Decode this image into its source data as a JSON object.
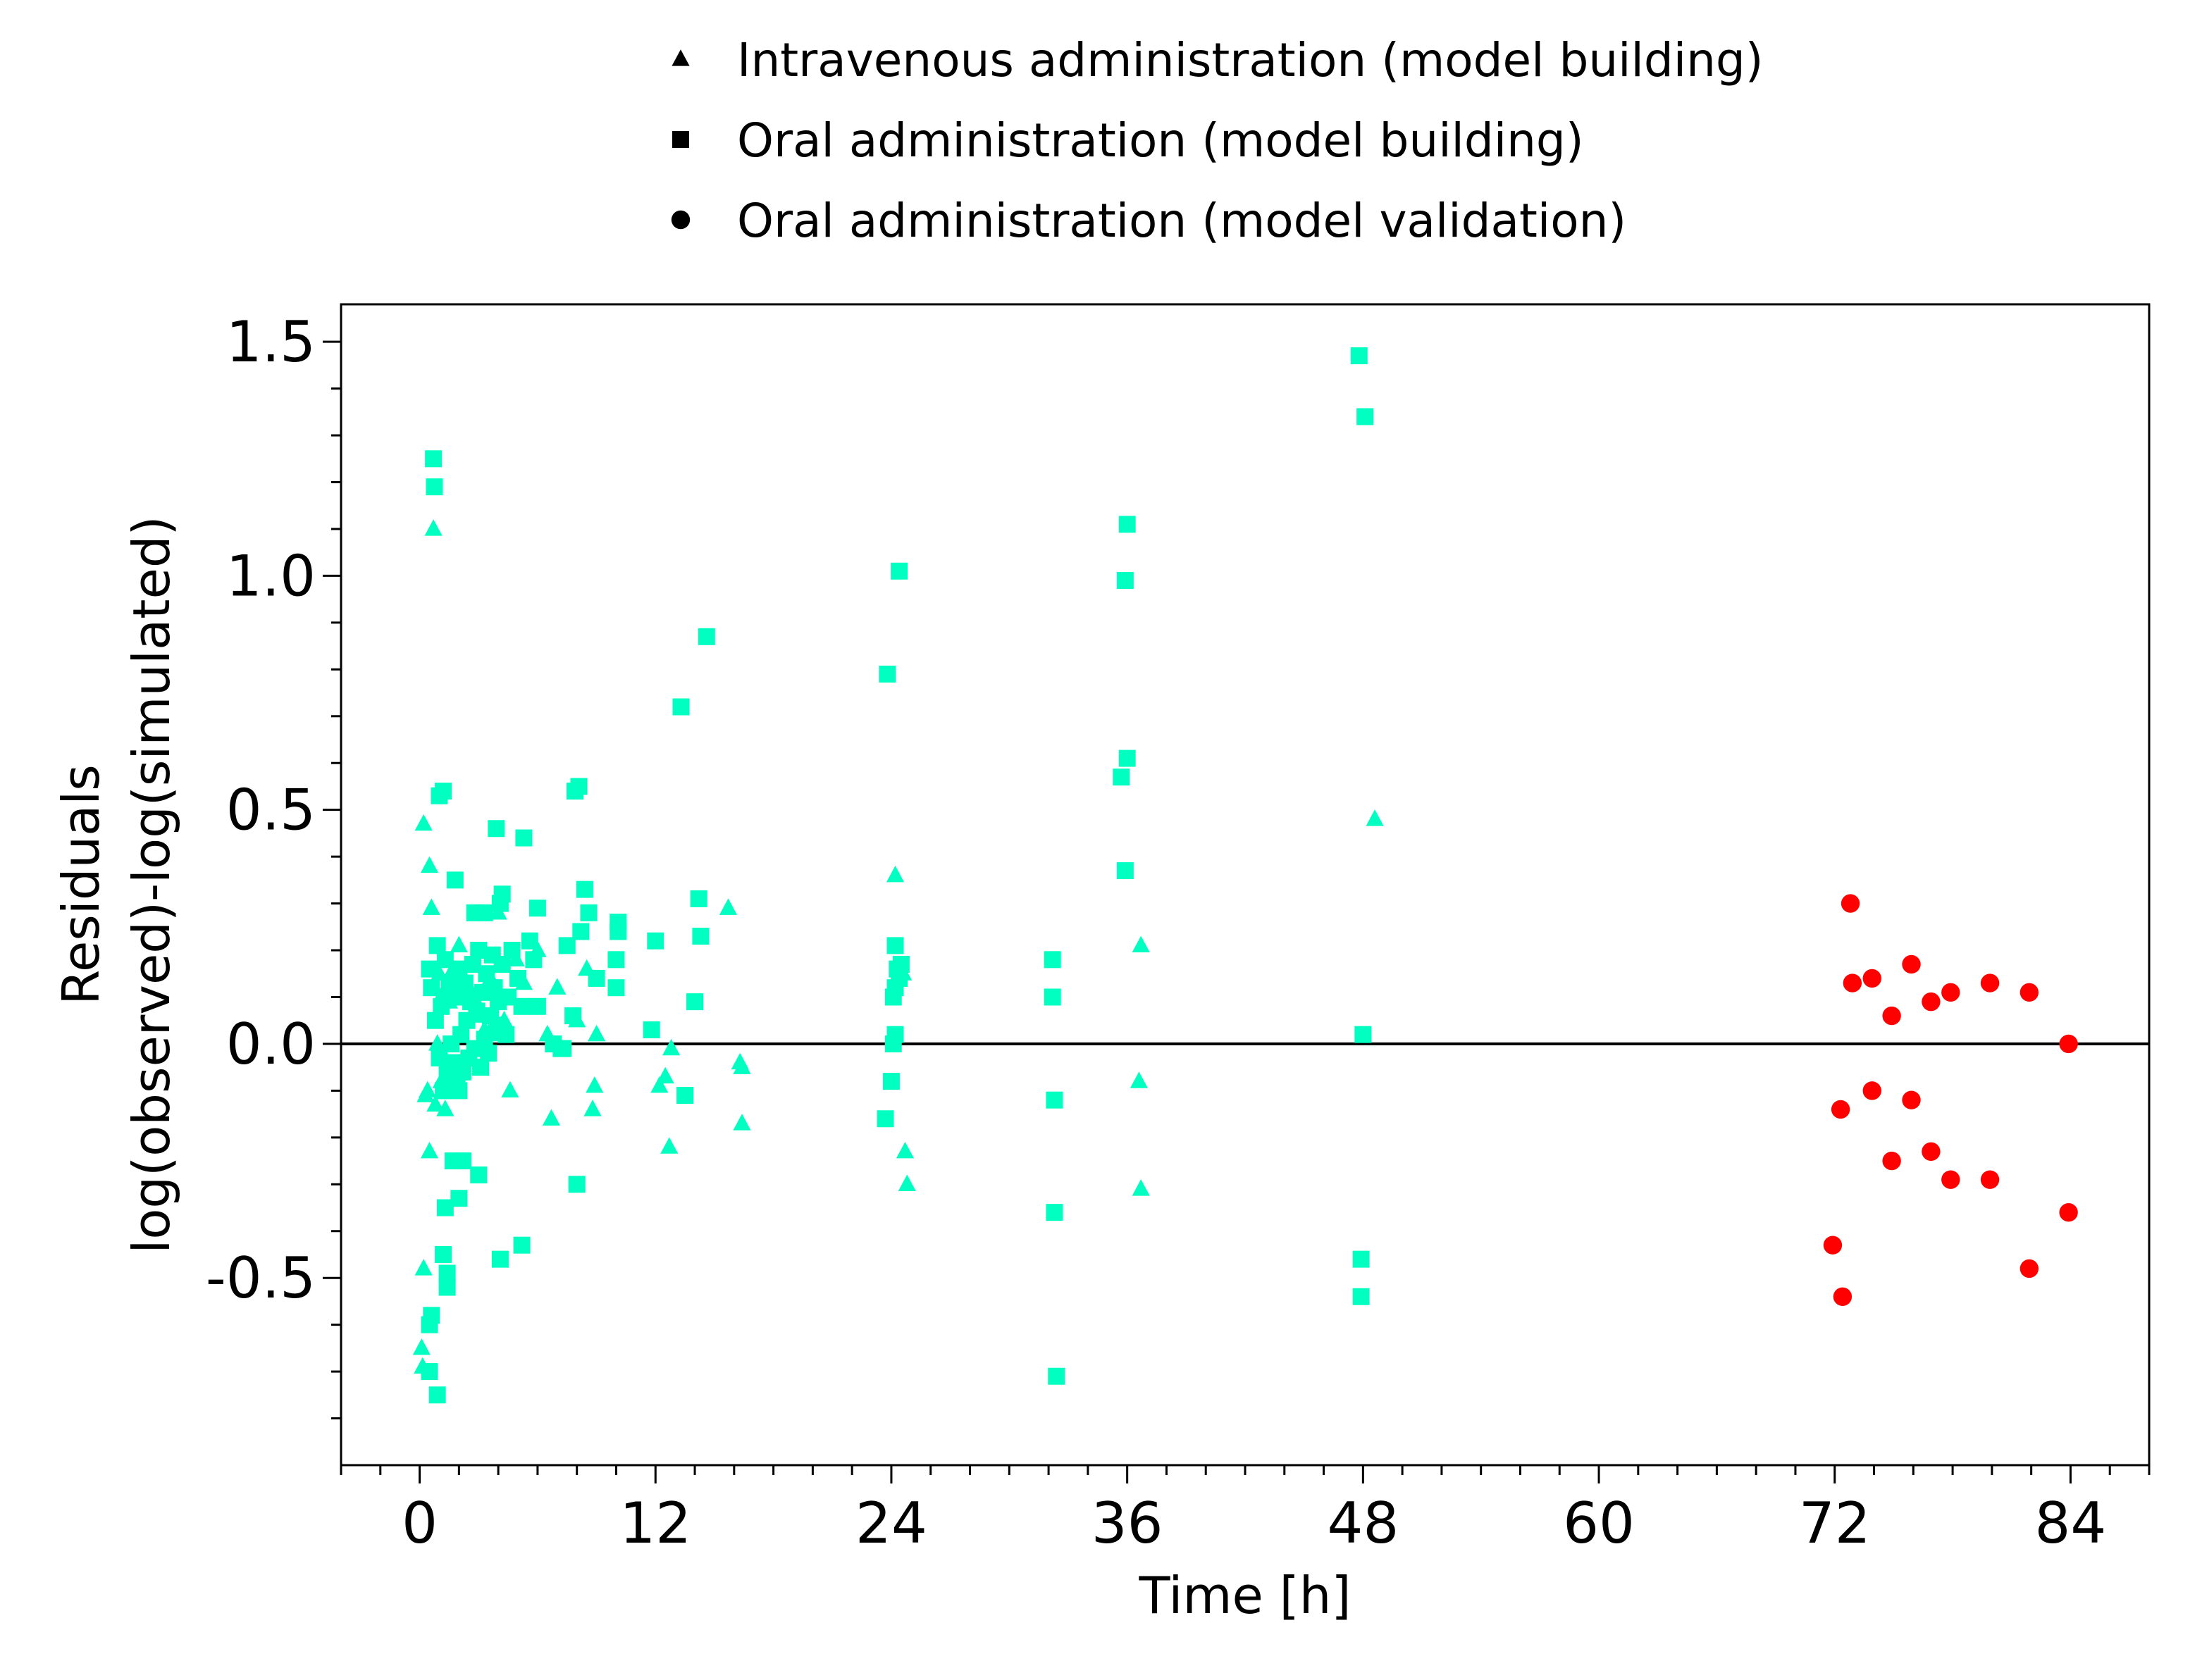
{
  "chart_data": {
    "type": "scatter",
    "xlabel": "Time [h]",
    "ylabel_lines": [
      "Residuals",
      "log(observed)-log(simulated)"
    ],
    "xlim": [
      -4,
      88
    ],
    "ylim": [
      -0.9,
      1.58
    ],
    "x_ticks": [
      0,
      12,
      24,
      36,
      48,
      60,
      72,
      84
    ],
    "x_tick_labels": [
      "0",
      "12",
      "24",
      "36",
      "48",
      "60",
      "72",
      "84"
    ],
    "x_minor_step": 2,
    "y_ticks": [
      -0.5,
      0.0,
      0.5,
      1.0,
      1.5
    ],
    "y_tick_labels": [
      "-0.5",
      "0.0",
      "0.5",
      "1.0",
      "1.5"
    ],
    "y_minor_step": 0.1,
    "reference_line_y": 0,
    "grid": false,
    "legend_position": "top-center",
    "series": [
      {
        "name": "Intravenous administration (model building)",
        "marker": "triangle",
        "color": "#00FFC0",
        "legend_color": "#000000",
        "points": [
          [
            0.1,
            -0.65
          ],
          [
            0.15,
            -0.69
          ],
          [
            0.2,
            -0.48
          ],
          [
            0.2,
            0.47
          ],
          [
            0.3,
            -0.11
          ],
          [
            0.4,
            -0.1
          ],
          [
            0.5,
            0.38
          ],
          [
            0.5,
            -0.23
          ],
          [
            0.6,
            0.29
          ],
          [
            0.7,
            1.1
          ],
          [
            0.8,
            -0.13
          ],
          [
            0.9,
            0.0
          ],
          [
            1.0,
            0.15
          ],
          [
            1.1,
            -0.08
          ],
          [
            1.2,
            0.11
          ],
          [
            1.3,
            -0.14
          ],
          [
            1.5,
            0.09
          ],
          [
            1.7,
            0.16
          ],
          [
            2.0,
            0.21
          ],
          [
            2.2,
            -0.05
          ],
          [
            2.5,
            0.12
          ],
          [
            2.8,
            0.06
          ],
          [
            3.0,
            0.08
          ],
          [
            3.3,
            0.03
          ],
          [
            3.6,
            0.14
          ],
          [
            3.9,
            0.02
          ],
          [
            4.0,
            0.28
          ],
          [
            4.3,
            0.05
          ],
          [
            4.6,
            -0.1
          ],
          [
            4.9,
            0.18
          ],
          [
            5.3,
            0.13
          ],
          [
            6.0,
            0.2
          ],
          [
            6.5,
            0.02
          ],
          [
            6.7,
            -0.16
          ],
          [
            7.0,
            0.12
          ],
          [
            8.0,
            0.05
          ],
          [
            8.5,
            0.16
          ],
          [
            8.8,
            -0.14
          ],
          [
            8.9,
            -0.09
          ],
          [
            9.0,
            0.02
          ],
          [
            12.2,
            -0.09
          ],
          [
            12.5,
            -0.07
          ],
          [
            12.7,
            -0.22
          ],
          [
            12.8,
            -0.01
          ],
          [
            15.7,
            0.29
          ],
          [
            16.3,
            -0.04
          ],
          [
            16.4,
            -0.05
          ],
          [
            16.4,
            -0.17
          ],
          [
            24.2,
            0.36
          ],
          [
            24.6,
            0.15
          ],
          [
            24.7,
            -0.23
          ],
          [
            24.8,
            -0.3
          ],
          [
            36.6,
            -0.08
          ],
          [
            36.7,
            0.21
          ],
          [
            36.7,
            -0.31
          ],
          [
            48.6,
            0.48
          ]
        ]
      },
      {
        "name": "Oral administration (model building)",
        "marker": "square",
        "color": "#00FFC0",
        "legend_color": "#000000",
        "points": [
          [
            0.5,
            -0.7
          ],
          [
            0.5,
            -0.6
          ],
          [
            0.6,
            -0.58
          ],
          [
            0.7,
            1.25
          ],
          [
            0.75,
            1.19
          ],
          [
            0.9,
            -0.75
          ],
          [
            1.0,
            0.53
          ],
          [
            1.2,
            -0.45
          ],
          [
            1.2,
            0.54
          ],
          [
            1.3,
            -0.35
          ],
          [
            1.4,
            -0.52
          ],
          [
            1.4,
            -0.49
          ],
          [
            1.7,
            -0.25
          ],
          [
            1.8,
            0.35
          ],
          [
            2.0,
            -0.33
          ],
          [
            2.2,
            -0.25
          ],
          [
            2.8,
            0.28
          ],
          [
            3.0,
            -0.28
          ],
          [
            3.3,
            0.28
          ],
          [
            3.9,
            0.46
          ],
          [
            4.1,
            -0.46
          ],
          [
            4.1,
            0.3
          ],
          [
            4.2,
            0.32
          ],
          [
            5.2,
            -0.43
          ],
          [
            5.3,
            0.44
          ],
          [
            6.0,
            0.29
          ],
          [
            6.0,
            0.08
          ],
          [
            7.5,
            0.21
          ],
          [
            7.8,
            0.06
          ],
          [
            7.9,
            0.54
          ],
          [
            8.1,
            0.55
          ],
          [
            8.0,
            -0.3
          ],
          [
            8.2,
            0.24
          ],
          [
            8.4,
            0.33
          ],
          [
            8.6,
            0.28
          ],
          [
            9.0,
            0.14
          ],
          [
            10.0,
            0.12
          ],
          [
            10.0,
            0.18
          ],
          [
            10.1,
            0.24
          ],
          [
            10.1,
            0.26
          ],
          [
            11.8,
            0.03
          ],
          [
            12.0,
            0.22
          ],
          [
            13.3,
            0.72
          ],
          [
            13.5,
            -0.11
          ],
          [
            14.0,
            0.09
          ],
          [
            14.2,
            0.31
          ],
          [
            14.3,
            0.23
          ],
          [
            14.6,
            0.87
          ],
          [
            23.7,
            -0.16
          ],
          [
            23.8,
            0.79
          ],
          [
            24.0,
            -0.08
          ],
          [
            24.1,
            0.0
          ],
          [
            24.2,
            0.02
          ],
          [
            24.1,
            0.1
          ],
          [
            24.2,
            0.21
          ],
          [
            24.2,
            0.12
          ],
          [
            24.3,
            0.16
          ],
          [
            24.4,
            0.14
          ],
          [
            24.4,
            1.01
          ],
          [
            24.5,
            0.17
          ],
          [
            32.2,
            0.18
          ],
          [
            32.2,
            0.1
          ],
          [
            32.3,
            -0.12
          ],
          [
            32.3,
            -0.36
          ],
          [
            32.4,
            -0.71
          ],
          [
            35.7,
            0.57
          ],
          [
            35.9,
            0.99
          ],
          [
            35.9,
            0.37
          ],
          [
            36.0,
            1.11
          ],
          [
            36.0,
            0.61
          ],
          [
            47.8,
            1.47
          ],
          [
            47.9,
            -0.46
          ],
          [
            47.9,
            -0.54
          ],
          [
            48.0,
            0.02
          ],
          [
            48.1,
            1.34
          ],
          [
            0.5,
            0.16
          ],
          [
            0.6,
            0.12
          ],
          [
            0.8,
            0.05
          ],
          [
            0.9,
            0.21
          ],
          [
            1.0,
            -0.03
          ],
          [
            1.1,
            0.08
          ],
          [
            1.2,
            -0.1
          ],
          [
            1.3,
            0.18
          ],
          [
            1.4,
            -0.06
          ],
          [
            1.5,
            0.13
          ],
          [
            1.6,
            0.0
          ],
          [
            1.7,
            -0.04
          ],
          [
            1.8,
            0.1
          ],
          [
            1.9,
            -0.08
          ],
          [
            2.0,
            0.16
          ],
          [
            2.1,
            0.02
          ],
          [
            2.2,
            -0.06
          ],
          [
            2.3,
            0.13
          ],
          [
            2.4,
            0.05
          ],
          [
            2.5,
            -0.03
          ],
          [
            2.6,
            0.09
          ],
          [
            2.7,
            0.17
          ],
          [
            2.8,
            -0.01
          ],
          [
            2.9,
            0.07
          ],
          [
            3.0,
            0.2
          ],
          [
            3.1,
            -0.05
          ],
          [
            3.2,
            0.11
          ],
          [
            3.3,
            0.01
          ],
          [
            3.4,
            0.15
          ],
          [
            3.5,
            -0.02
          ],
          [
            3.6,
            0.06
          ],
          [
            3.7,
            0.19
          ],
          [
            3.8,
            0.12
          ],
          [
            3.9,
            0.04
          ],
          [
            4.0,
            0.09
          ],
          [
            4.2,
            0.17
          ],
          [
            4.4,
            0.02
          ],
          [
            4.5,
            0.1
          ],
          [
            4.7,
            0.2
          ],
          [
            5.0,
            0.14
          ],
          [
            5.2,
            0.08
          ],
          [
            5.6,
            0.22
          ],
          [
            5.8,
            0.18
          ],
          [
            6.8,
            0.0
          ],
          [
            7.2,
            -0.01
          ],
          [
            7.3,
            -0.01
          ],
          [
            2.0,
            -0.1
          ],
          [
            1.6,
            -0.08
          ]
        ]
      },
      {
        "name": "Oral administration (model validation)",
        "marker": "circle",
        "color": "#FF0000",
        "legend_color": "#000000",
        "points": [
          [
            71.9,
            -0.43
          ],
          [
            72.3,
            -0.14
          ],
          [
            72.4,
            -0.54
          ],
          [
            72.8,
            0.3
          ],
          [
            72.9,
            0.13
          ],
          [
            73.9,
            0.14
          ],
          [
            73.9,
            -0.1
          ],
          [
            74.9,
            0.06
          ],
          [
            74.9,
            -0.25
          ],
          [
            75.9,
            0.17
          ],
          [
            75.9,
            -0.12
          ],
          [
            76.9,
            0.09
          ],
          [
            76.9,
            -0.23
          ],
          [
            77.9,
            0.11
          ],
          [
            77.9,
            -0.29
          ],
          [
            79.9,
            0.13
          ],
          [
            79.9,
            -0.29
          ],
          [
            81.9,
            0.11
          ],
          [
            81.9,
            -0.48
          ],
          [
            83.9,
            0.0
          ],
          [
            83.9,
            -0.36
          ]
        ]
      }
    ]
  }
}
